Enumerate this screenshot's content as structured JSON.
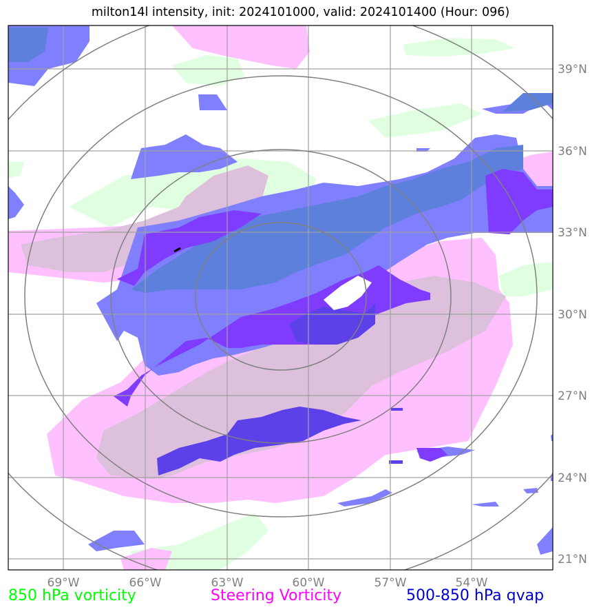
{
  "title": "milton14l intensity, init: 2024101000, valid: 2024101400 (Hour: 096)",
  "lon_labels": [
    "69°W",
    "66°W",
    "63°W",
    "60°W",
    "57°W",
    "54°W"
  ],
  "lat_labels": [
    "39°N",
    "36°N",
    "33°N",
    "30°N",
    "27°N",
    "24°N",
    "21°N"
  ],
  "legend": {
    "green": "850 hPa vorticity",
    "magenta": "Steering Vorticity",
    "blue": "500-850 hPa qvap"
  },
  "colors": {
    "green": "#00ff00",
    "magenta": "#ff00ff",
    "blue": "#0000cc",
    "vort850_fill": "#e0ffe0",
    "steering_fill": "#ffc0ff",
    "qvap_light": "#8080ff",
    "qvap_dark": "#5c40e8",
    "overlap_fill": "#dcc0dc",
    "grid": "#a0a0a0",
    "rings": "#808080"
  }
}
